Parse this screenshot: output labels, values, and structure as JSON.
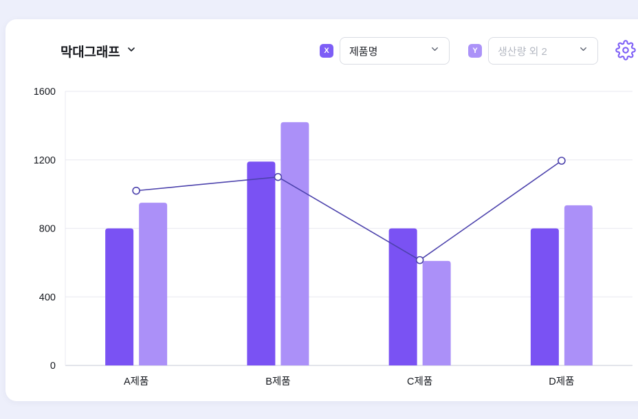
{
  "header": {
    "title": "막대그래프",
    "x_badge": "X",
    "x_select_value": "제품명",
    "y_badge": "Y",
    "y_select_value": "생산량 외 2"
  },
  "colors": {
    "accent": "#7d5ef6",
    "accent_light": "#ab92f8",
    "line": "#4c42ac",
    "grid": "#ececf2",
    "axis": "#d9dce3",
    "tick_text": "#15181e",
    "page_bg": "#edeffb",
    "card_bg": "#ffffff"
  },
  "chart_data": {
    "type": "bar",
    "title": "막대그래프",
    "categories": [
      "A제품",
      "B제품",
      "C제품",
      "D제품"
    ],
    "series": [
      {
        "name": "bar-series-1",
        "type": "bar",
        "color": "#7a52f3",
        "values": [
          800,
          1190,
          800,
          800
        ]
      },
      {
        "name": "bar-series-2",
        "type": "bar",
        "color": "#ab90f8",
        "values": [
          950,
          1420,
          610,
          935
        ]
      },
      {
        "name": "line-series",
        "type": "line",
        "color": "#4c42ac",
        "values": [
          1020,
          1100,
          615,
          1195
        ]
      }
    ],
    "xlabel": "",
    "ylabel": "",
    "ylim": [
      0,
      1600
    ],
    "yticks": [
      0,
      400,
      800,
      1200,
      1600
    ],
    "grid": true,
    "legend": "none"
  }
}
